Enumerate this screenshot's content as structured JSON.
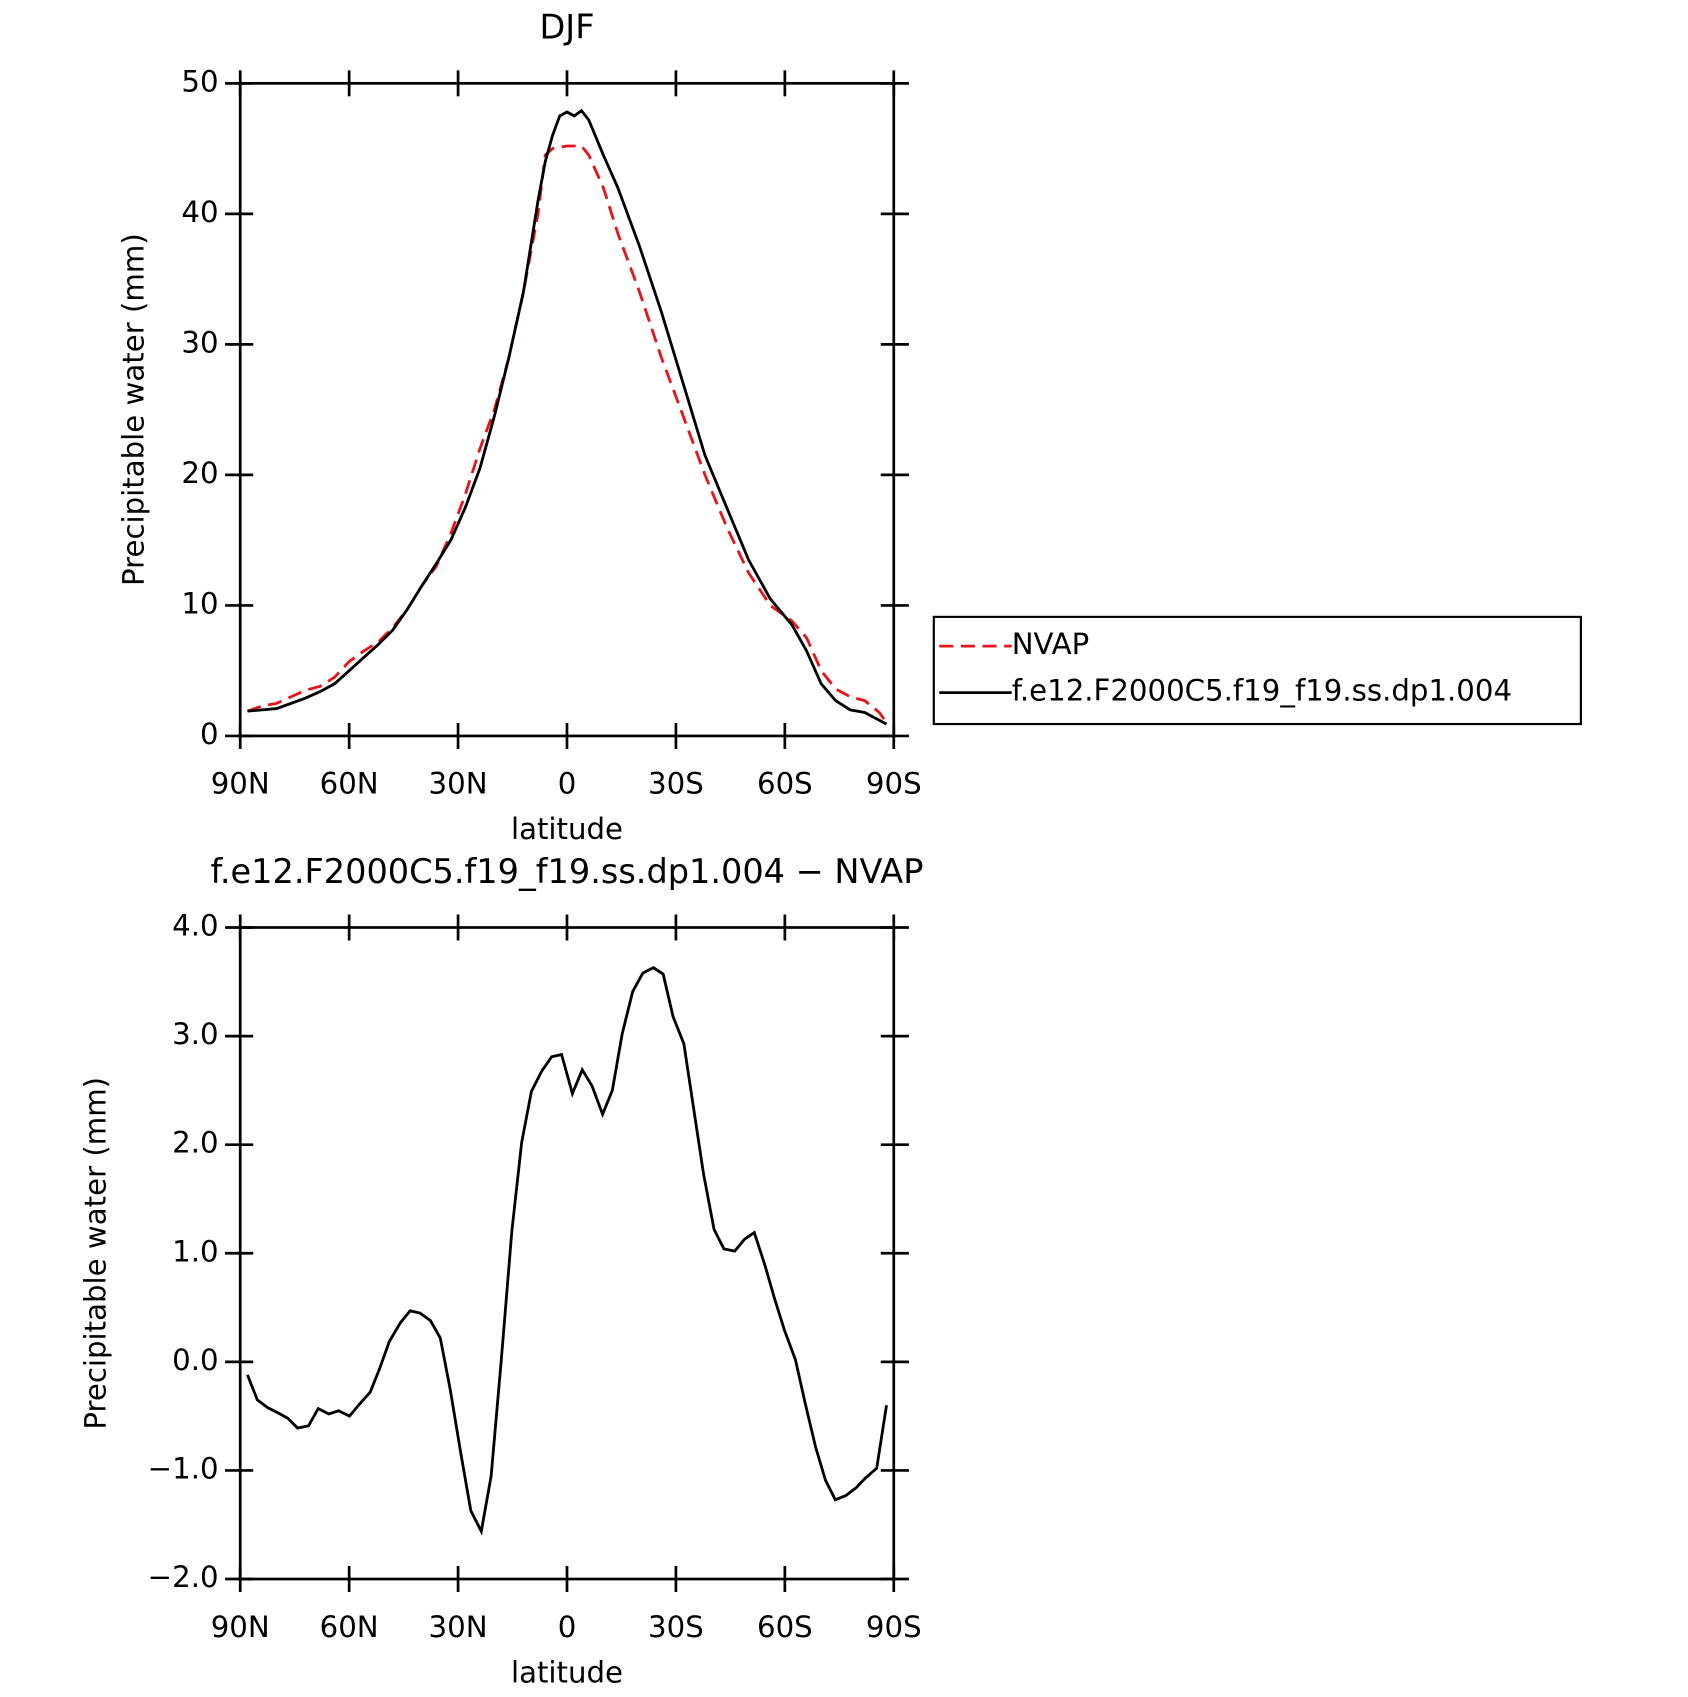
{
  "chart_data": [
    {
      "type": "line",
      "title": "DJF",
      "xlabel": "latitude",
      "ylabel": "Precipitable water (mm)",
      "x": [
        88,
        84,
        80,
        76,
        72,
        68,
        64,
        60,
        56,
        52,
        48,
        44,
        40,
        36,
        32,
        28,
        24,
        20,
        16,
        12,
        8,
        6,
        4,
        2,
        0,
        -2,
        -4,
        -6,
        -10,
        -14,
        -20,
        -26,
        -32,
        -38,
        -44,
        -50,
        -56,
        -62,
        -66,
        -70,
        -74,
        -78,
        -82,
        -86,
        -88
      ],
      "series": [
        {
          "name": "NVAP",
          "color": "#e8141a",
          "dash": true,
          "values": [
            1.9,
            2.3,
            2.5,
            3.0,
            3.5,
            3.8,
            4.5,
            5.7,
            6.5,
            7.2,
            8.3,
            9.7,
            11.5,
            13.0,
            15.5,
            18.5,
            22,
            25,
            29,
            34,
            40,
            44.5,
            45,
            45.1,
            45.2,
            45.2,
            45.2,
            44.5,
            42,
            38.5,
            34,
            29,
            24.5,
            20,
            16,
            12.5,
            10,
            8.8,
            7.5,
            5.0,
            3.6,
            3.0,
            2.7,
            1.8,
            1.0
          ]
        },
        {
          "name": "f.e12.F2000C5.f19_f19.ss.dp1.004",
          "color": "#000000",
          "dash": false,
          "values": [
            1.9,
            2.0,
            2.1,
            2.5,
            2.9,
            3.4,
            4.0,
            5.0,
            6.0,
            7.0,
            8.1,
            9.7,
            11.5,
            13.2,
            15.0,
            17.5,
            20.5,
            24.5,
            29,
            34,
            41,
            44,
            46,
            47.5,
            47.8,
            47.5,
            47.9,
            47.2,
            44.5,
            42,
            37.5,
            32.5,
            27,
            21.5,
            17.5,
            13.5,
            10.5,
            8.5,
            6.5,
            4.0,
            2.7,
            2.0,
            1.8,
            1.2,
            0.9
          ]
        }
      ],
      "xlim": [
        90,
        -90
      ],
      "xticks": [
        {
          "value": 90,
          "label": "90N"
        },
        {
          "value": 60,
          "label": "60N"
        },
        {
          "value": 30,
          "label": "30N"
        },
        0,
        {
          "value": -30,
          "label": "30S"
        },
        {
          "value": -60,
          "label": "60S"
        },
        {
          "value": -90,
          "label": "90S"
        }
      ],
      "ylim": [
        0,
        50
      ],
      "yticks": [
        0,
        10,
        20,
        30,
        40,
        50
      ],
      "legend": "right"
    },
    {
      "type": "line",
      "title": "f.e12.F2000C5.f19_f19.ss.dp1.004 − NVAP",
      "xlabel": "latitude",
      "ylabel": "Precipitable water (mm)",
      "x": [
        88,
        85.3,
        82.5,
        79.6,
        76.9,
        74.2,
        71.2,
        68.5,
        65.6,
        62.9,
        59.9,
        57.2,
        54.2,
        51.6,
        48.9,
        45.9,
        43.2,
        40.5,
        37.6,
        34.9,
        32.2,
        29.2,
        26.5,
        23.6,
        20.9,
        18.1,
        15.2,
        12.5,
        9.8,
        6.9,
        4.2,
        1.5,
        -1.5,
        -4.2,
        -6.9,
        -9.8,
        -12.5,
        -15.2,
        -18.1,
        -20.9,
        -23.8,
        -26.5,
        -29.2,
        -32.2,
        -34.9,
        -37.6,
        -40.5,
        -43.2,
        -46.2,
        -48.9,
        -51.6,
        -54.5,
        -57.2,
        -59.9,
        -62.9,
        -65.6,
        -68.5,
        -71.2,
        -73.9,
        -76.9,
        -79.6,
        -82.2,
        -85.3,
        -88
      ],
      "series": [
        {
          "color": "#000000",
          "dash": false,
          "values": [
            -0.12,
            -0.35,
            -0.42,
            -0.47,
            -0.52,
            -0.61,
            -0.59,
            -0.43,
            -0.48,
            -0.45,
            -0.5,
            -0.39,
            -0.28,
            -0.06,
            0.19,
            0.36,
            0.47,
            0.45,
            0.38,
            0.22,
            -0.25,
            -0.85,
            -1.37,
            -1.56,
            -1.05,
            0.02,
            1.2,
            2.02,
            2.49,
            2.68,
            2.81,
            2.83,
            2.47,
            2.69,
            2.54,
            2.28,
            2.5,
            3.02,
            3.41,
            3.58,
            3.63,
            3.57,
            3.18,
            2.93,
            2.33,
            1.73,
            1.22,
            1.04,
            1.02,
            1.13,
            1.19,
            0.89,
            0.58,
            0.29,
            0.02,
            -0.38,
            -0.79,
            -1.09,
            -1.27,
            -1.23,
            -1.16,
            -1.07,
            -0.98,
            -0.4
          ]
        }
      ],
      "xlim": [
        90,
        -90
      ],
      "xticks": [
        {
          "value": 90,
          "label": "90N"
        },
        {
          "value": 60,
          "label": "60N"
        },
        {
          "value": 30,
          "label": "30N"
        },
        0,
        {
          "value": -30,
          "label": "30S"
        },
        {
          "value": -60,
          "label": "60S"
        },
        {
          "value": -90,
          "label": "90S"
        }
      ],
      "ylim": [
        -2,
        4
      ],
      "yticks": [
        {
          "value": -2,
          "label": "−2.0"
        },
        {
          "value": -1,
          "label": "−1.0"
        },
        {
          "value": 0,
          "label": "0.0"
        },
        {
          "value": 1,
          "label": "1.0"
        },
        {
          "value": 2,
          "label": "2.0"
        },
        {
          "value": 3,
          "label": "3.0"
        },
        {
          "value": 4,
          "label": "4.0"
        }
      ]
    }
  ]
}
